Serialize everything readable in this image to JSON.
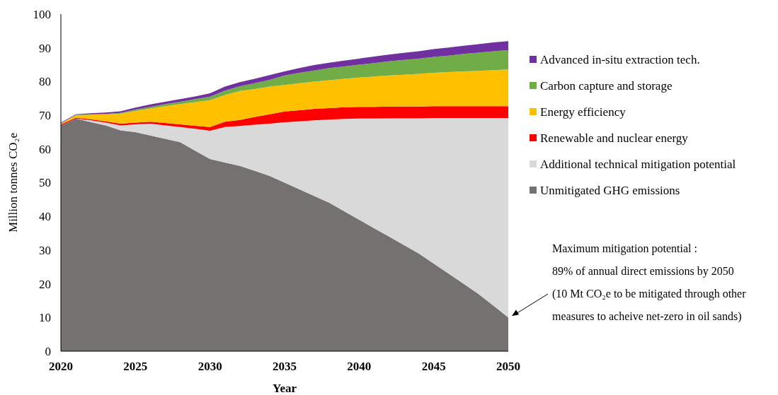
{
  "chart_data": {
    "type": "area",
    "stacked": true,
    "xlabel": "Year",
    "ylabel": "Million tonnes CO₂e",
    "x": [
      2020,
      2021,
      2022,
      2023,
      2024,
      2025,
      2026,
      2027,
      2028,
      2029,
      2030,
      2031,
      2032,
      2033,
      2034,
      2035,
      2036,
      2037,
      2038,
      2039,
      2040,
      2041,
      2042,
      2043,
      2044,
      2045,
      2046,
      2047,
      2048,
      2049,
      2050
    ],
    "xlim": [
      2020,
      2050
    ],
    "xticks": [
      2020,
      2025,
      2030,
      2035,
      2040,
      2045,
      2050
    ],
    "ylim": [
      0,
      100
    ],
    "yticks": [
      0,
      10,
      20,
      30,
      40,
      50,
      60,
      70,
      80,
      90,
      100
    ],
    "legend": "right",
    "grid": false,
    "series": [
      {
        "name": "Unmitigated GHG emissions",
        "color": "#767171",
        "values": [
          67,
          69,
          68,
          67,
          65.5,
          65,
          64,
          63,
          62,
          59.5,
          57,
          56,
          55,
          53.5,
          52,
          50,
          48,
          46,
          44,
          41.5,
          39,
          36.5,
          34,
          31.5,
          29,
          26,
          23,
          20,
          17,
          13.5,
          10
        ]
      },
      {
        "name": "Additional technical mitigation potential",
        "color": "#d9d9d9",
        "values": [
          0,
          0,
          0.5,
          0.8,
          1.5,
          2.3,
          3.5,
          4,
          4.5,
          6.5,
          8.4,
          10.5,
          11.8,
          13.7,
          15.5,
          17.9,
          20.2,
          22.5,
          24.7,
          27.4,
          30,
          32.5,
          35.1,
          37.6,
          40.1,
          43.2,
          46.2,
          49.2,
          52.2,
          55.7,
          59.2
        ]
      },
      {
        "name": "Renewable and nuclear energy",
        "color": "#ff0000",
        "values": [
          0.3,
          0.3,
          0.3,
          0.4,
          0.5,
          0.5,
          0.6,
          0.7,
          0.8,
          0.9,
          1.1,
          1.6,
          1.8,
          2.3,
          2.8,
          3.2,
          3.3,
          3.4,
          3.4,
          3.5,
          3.5,
          3.5,
          3.5,
          3.5,
          3.5,
          3.5,
          3.5,
          3.5,
          3.5,
          3.5,
          3.5
        ]
      },
      {
        "name": "Energy efficiency",
        "color": "#ffc000",
        "values": [
          0.2,
          0.7,
          1.4,
          2.1,
          3,
          3.5,
          3.9,
          5,
          6,
          7,
          8,
          7.9,
          8.6,
          8.3,
          8.2,
          7.9,
          8,
          8.1,
          8.3,
          8.4,
          8.7,
          9,
          9.2,
          9.4,
          9.7,
          9.9,
          10.1,
          10.3,
          10.5,
          10.7,
          10.9
        ]
      },
      {
        "name": "Carbon capture and storage",
        "color": "#70ad47",
        "values": [
          0.1,
          0.1,
          0.1,
          0.1,
          0.2,
          0.4,
          0.5,
          0.6,
          0.7,
          0.9,
          1,
          1.3,
          1.4,
          1.7,
          2,
          2.8,
          3.1,
          3.3,
          3.6,
          3.7,
          3.8,
          4,
          4.2,
          4.4,
          4.5,
          4.7,
          4.9,
          5.2,
          5.4,
          5.6,
          5.7
        ]
      },
      {
        "name": "Advanced in-situ extraction tech.",
        "color": "#7030a0",
        "values": [
          0.2,
          0.2,
          0.3,
          0.4,
          0.5,
          0.6,
          0.7,
          0.7,
          0.8,
          0.8,
          1,
          1.2,
          1.2,
          1.3,
          1.4,
          1.2,
          1.4,
          1.6,
          1.6,
          1.7,
          1.8,
          1.9,
          2,
          2.1,
          2.2,
          2.3,
          2.4,
          2.4,
          2.5,
          2.6,
          2.7
        ]
      }
    ],
    "annotations": [
      "Maximum mitigation potential :",
      "89% of annual direct emissions by 2050",
      "(10 Mt CO₂e to be mitigated through other",
      "measures to acheive net-zero in oil sands)"
    ]
  }
}
